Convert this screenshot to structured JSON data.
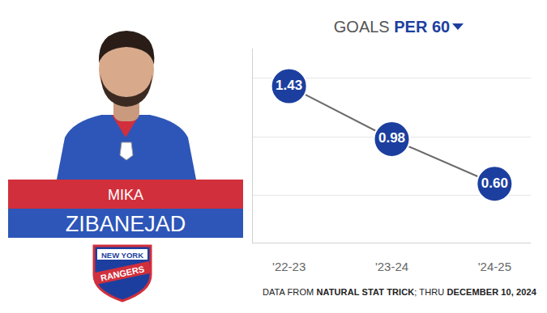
{
  "chart_data": {
    "type": "line",
    "title": "GOALS PER 60",
    "categories": [
      "'22-23",
      "'23-24",
      "'24-25"
    ],
    "values": [
      1.43,
      0.98,
      0.6
    ],
    "value_labels": [
      "1.43",
      "0.98",
      "0.60"
    ],
    "color": "#1c3f9f",
    "marker": "circle",
    "data_labels": true,
    "tick_labels": "x",
    "ylim": [
      0.1,
      1.75
    ],
    "yticks": [
      0.5,
      1,
      1.5
    ],
    "grid": true
  },
  "player": {
    "first_name": "MIKA",
    "last_name": "ZIBANEJAD"
  },
  "team_logo": {
    "top": "NEW YORK",
    "bottom": "RANGERS"
  },
  "source": [
    {
      "text": "DATA FROM ",
      "bold": false
    },
    {
      "text": "NATURAL STAT TRICK",
      "bold": true
    },
    {
      "text": "; THRU ",
      "bold": false
    },
    {
      "text": "DECEMBER 10, 2024",
      "bold": true
    }
  ]
}
